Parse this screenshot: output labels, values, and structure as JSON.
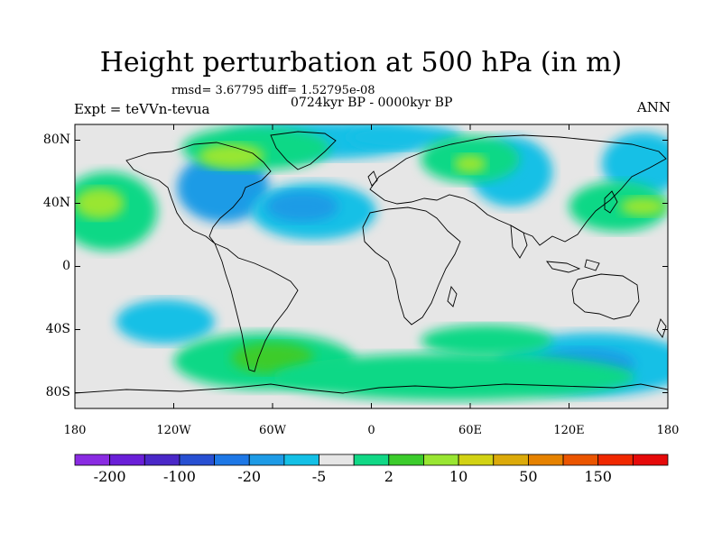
{
  "title": "Height perturbation at 500 hPa (in m)",
  "stats": "rmsd= 3.67795  diff= 1.52795e-08",
  "period": "0724kyr BP - 0000kyr BP",
  "experiment": "Expt = teVVn-tevua",
  "season": "ANN",
  "map": {
    "projection": "cylindrical equidistant",
    "lon_range": [
      -180,
      180
    ],
    "lat_range": [
      -90,
      90
    ],
    "lat_ticks": [
      {
        "value": 80,
        "label": "80N"
      },
      {
        "value": 40,
        "label": "40N"
      },
      {
        "value": 0,
        "label": "0"
      },
      {
        "value": -40,
        "label": "40S"
      },
      {
        "value": -80,
        "label": "80S"
      }
    ],
    "lon_ticks": [
      {
        "value": -180,
        "label": "180"
      },
      {
        "value": -120,
        "label": "120W"
      },
      {
        "value": -60,
        "label": "60W"
      },
      {
        "value": 0,
        "label": "0"
      },
      {
        "value": 60,
        "label": "60E"
      },
      {
        "value": 120,
        "label": "120E"
      },
      {
        "value": 180,
        "label": "180"
      }
    ],
    "background_color": "#e6e6e6"
  },
  "field_regions": [
    {
      "type": "negative",
      "level": -5,
      "color": "#14c0e6",
      "lon": -30,
      "lat": 80,
      "rlon": 60,
      "rlat": 12
    },
    {
      "type": "negative",
      "level": -20,
      "color": "#1e9be6",
      "lon": -90,
      "lat": 50,
      "rlon": 28,
      "rlat": 22
    },
    {
      "type": "negative",
      "level": -5,
      "color": "#14c0e6",
      "lon": -35,
      "lat": 35,
      "rlon": 38,
      "rlat": 18
    },
    {
      "type": "negative",
      "level": -20,
      "color": "#1e9be6",
      "lon": -42,
      "lat": 38,
      "rlon": 22,
      "rlat": 10
    },
    {
      "type": "negative",
      "level": -5,
      "color": "#14c0e6",
      "lon": 20,
      "lat": 82,
      "rlon": 35,
      "rlat": 8
    },
    {
      "type": "negative",
      "level": -5,
      "color": "#14c0e6",
      "lon": 85,
      "lat": 60,
      "rlon": 25,
      "rlat": 22
    },
    {
      "type": "negative",
      "level": -5,
      "color": "#14c0e6",
      "lon": 165,
      "lat": 65,
      "rlon": 25,
      "rlat": 20
    },
    {
      "type": "negative",
      "level": -5,
      "color": "#14c0e6",
      "lon": -125,
      "lat": -35,
      "rlon": 30,
      "rlat": 14
    },
    {
      "type": "negative",
      "level": -5,
      "color": "#14c0e6",
      "lon": 135,
      "lat": -62,
      "rlon": 60,
      "rlat": 20
    },
    {
      "type": "negative",
      "level": -20,
      "color": "#1e9be6",
      "lon": 130,
      "lat": -62,
      "rlon": 30,
      "rlat": 10
    },
    {
      "type": "positive",
      "level": 2,
      "color": "#11d886",
      "lon": -160,
      "lat": 35,
      "rlon": 30,
      "rlat": 25
    },
    {
      "type": "positive",
      "level": 10,
      "color": "#99e632",
      "lon": -165,
      "lat": 40,
      "rlon": 15,
      "rlat": 10
    },
    {
      "type": "positive",
      "level": 2,
      "color": "#11d886",
      "lon": -70,
      "lat": 75,
      "rlon": 45,
      "rlat": 14
    },
    {
      "type": "positive",
      "level": 10,
      "color": "#99e632",
      "lon": -85,
      "lat": 70,
      "rlon": 20,
      "rlat": 8
    },
    {
      "type": "positive",
      "level": 2,
      "color": "#11d886",
      "lon": 60,
      "lat": 68,
      "rlon": 30,
      "rlat": 15
    },
    {
      "type": "positive",
      "level": 10,
      "color": "#99e632",
      "lon": 60,
      "lat": 65,
      "rlon": 10,
      "rlat": 6
    },
    {
      "type": "positive",
      "level": 2,
      "color": "#11d886",
      "lon": 150,
      "lat": 38,
      "rlon": 30,
      "rlat": 16
    },
    {
      "type": "positive",
      "level": 10,
      "color": "#99e632",
      "lon": 165,
      "lat": 38,
      "rlon": 14,
      "rlat": 6
    },
    {
      "type": "positive",
      "level": 2,
      "color": "#11d886",
      "lon": -65,
      "lat": -60,
      "rlon": 55,
      "rlat": 18
    },
    {
      "type": "positive",
      "level": 10,
      "color": "#3ccc2c",
      "lon": -60,
      "lat": -58,
      "rlon": 25,
      "rlat": 10
    },
    {
      "type": "positive",
      "level": 2,
      "color": "#11d886",
      "lon": 50,
      "lat": -70,
      "rlon": 110,
      "rlat": 15
    },
    {
      "type": "positive",
      "level": 2,
      "color": "#11d886",
      "lon": 70,
      "lat": -47,
      "rlon": 40,
      "rlat": 10
    }
  ],
  "colorbar": {
    "colors": [
      "#8a2be2",
      "#6a1fd8",
      "#4a28c8",
      "#2850d2",
      "#1e78e6",
      "#1e9be6",
      "#14c0e6",
      "#e6e6e6",
      "#11d886",
      "#3ccc2c",
      "#99e632",
      "#d2d214",
      "#dcaa0a",
      "#e68200",
      "#eb5500",
      "#f02800",
      "#e60a0a"
    ],
    "labels": [
      {
        "text": "-200",
        "at_boundary": 1
      },
      {
        "text": "-100",
        "at_boundary": 3
      },
      {
        "text": "-20",
        "at_boundary": 5
      },
      {
        "text": "-5",
        "at_boundary": 7
      },
      {
        "text": "2",
        "at_boundary": 9
      },
      {
        "text": "10",
        "at_boundary": 11
      },
      {
        "text": "50",
        "at_boundary": 13
      },
      {
        "text": "150",
        "at_boundary": 15
      }
    ]
  }
}
